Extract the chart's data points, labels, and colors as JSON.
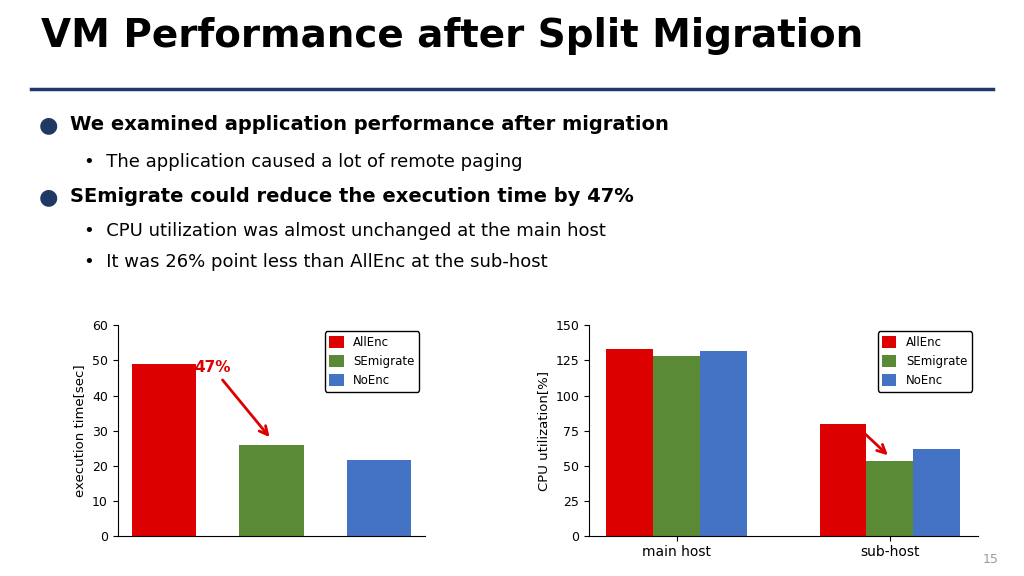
{
  "title": "VM Performance after Split Migration",
  "title_fontsize": 28,
  "title_color": "#000000",
  "header_line_color": "#1F3864",
  "bullets": [
    {
      "bold": "We examined application performance after migration",
      "subs": [
        "The application caused a lot of remote paging"
      ]
    },
    {
      "bold": "SEmigrate could reduce the execution time by 47%",
      "subs": [
        "CPU utilization was almost unchanged at the main host",
        "It was 26% point less than AllEnc at the sub-host"
      ]
    }
  ],
  "chart1": {
    "bars": [
      49,
      26,
      21.5
    ],
    "colors": [
      "#DD0000",
      "#5A8A35",
      "#4472C4"
    ],
    "labels": [
      "AllEnc",
      "SEmigrate",
      "NoEnc"
    ],
    "ylabel": "execution time[sec]",
    "ylim": [
      0,
      60
    ],
    "yticks": [
      0,
      10,
      20,
      30,
      40,
      50,
      60
    ],
    "annotation_text": "47%",
    "annotation_color": "#DD0000"
  },
  "chart2": {
    "groups": [
      "main host",
      "sub-host"
    ],
    "allenc": [
      133,
      80
    ],
    "semigrate": [
      128,
      53
    ],
    "noenc": [
      132,
      62
    ],
    "colors": [
      "#DD0000",
      "#5A8A35",
      "#4472C4"
    ],
    "labels": [
      "AllEnc",
      "SEmigrate",
      "NoEnc"
    ],
    "ylabel": "CPU utilization[%]",
    "ylim": [
      0,
      150
    ],
    "yticks": [
      0,
      25,
      50,
      75,
      100,
      125,
      150
    ]
  },
  "background_color": "#FFFFFF",
  "slide_number": "15",
  "bullet_color": "#000000",
  "bullet_dot_color": "#1F3864",
  "bold_fontsize": 14,
  "sub_fontsize": 13
}
